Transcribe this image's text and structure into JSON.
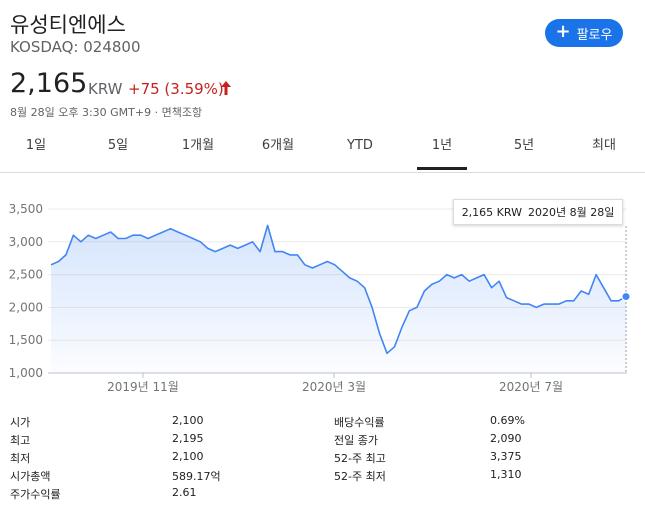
{
  "header": {
    "company": "유성티엔에스",
    "ticker": "KOSDAQ: 024800",
    "follow_label": "팔로우",
    "price": "2,165",
    "currency": "KRW",
    "change": "+75 (3.59%)",
    "timestamp": "8월 28일 오후 3:30 GMT+9 · 면책조항",
    "colors": {
      "up": "#c5221f",
      "accent": "#1a73e8",
      "line": "#4285f4"
    }
  },
  "tabs": [
    "1일",
    "5일",
    "1개월",
    "6개월",
    "YTD",
    "1년",
    "5년",
    "최대"
  ],
  "active_tab": "1년",
  "tooltip": {
    "price": "2,165 KRW",
    "date": "2020년 8월 28일"
  },
  "chart_data": {
    "type": "area",
    "title": "",
    "xlabel": "",
    "ylabel": "",
    "ylim": [
      1000,
      3500
    ],
    "y_ticks": [
      "3,500",
      "3,000",
      "2,500",
      "2,000",
      "1,500",
      "1,000"
    ],
    "x_ticks": [
      "2019년 11월",
      "2020년 3월",
      "2020년 7월"
    ],
    "grid": true,
    "series": [
      {
        "values": [
          2650,
          2700,
          2800,
          3100,
          3000,
          3100,
          3050,
          3100,
          3150,
          3050,
          3050,
          3100,
          3100,
          3050,
          3100,
          3150,
          3200,
          3150,
          3100,
          3050,
          3000,
          2900,
          2850,
          2900,
          2950,
          2900,
          2950,
          3000,
          2850,
          3250,
          2850,
          2850,
          2800,
          2800,
          2650,
          2600,
          2650,
          2700,
          2650,
          2550,
          2450,
          2400,
          2300,
          2000,
          1600,
          1300,
          1400,
          1700,
          1950,
          2000,
          2250,
          2350,
          2400,
          2500,
          2450,
          2500,
          2400,
          2450,
          2500,
          2300,
          2400,
          2150,
          2100,
          2050,
          2050,
          2000,
          2050,
          2050,
          2050,
          2100,
          2100,
          2250,
          2200,
          2500,
          2300,
          2100,
          2100,
          2165
        ]
      }
    ]
  },
  "stats": {
    "left": [
      {
        "label": "시가",
        "value": "2,100"
      },
      {
        "label": "최고",
        "value": "2,195"
      },
      {
        "label": "최저",
        "value": "2,100"
      },
      {
        "label": "시가총액",
        "value": "589.17억"
      },
      {
        "label": "주가수익률",
        "value": "2.61"
      }
    ],
    "right": [
      {
        "label": "배당수익률",
        "value": "0.69%"
      },
      {
        "label": "전일 종가",
        "value": "2,090"
      },
      {
        "label": "52-주 최고",
        "value": "3,375"
      },
      {
        "label": "52-주 최저",
        "value": "1,310"
      }
    ]
  }
}
